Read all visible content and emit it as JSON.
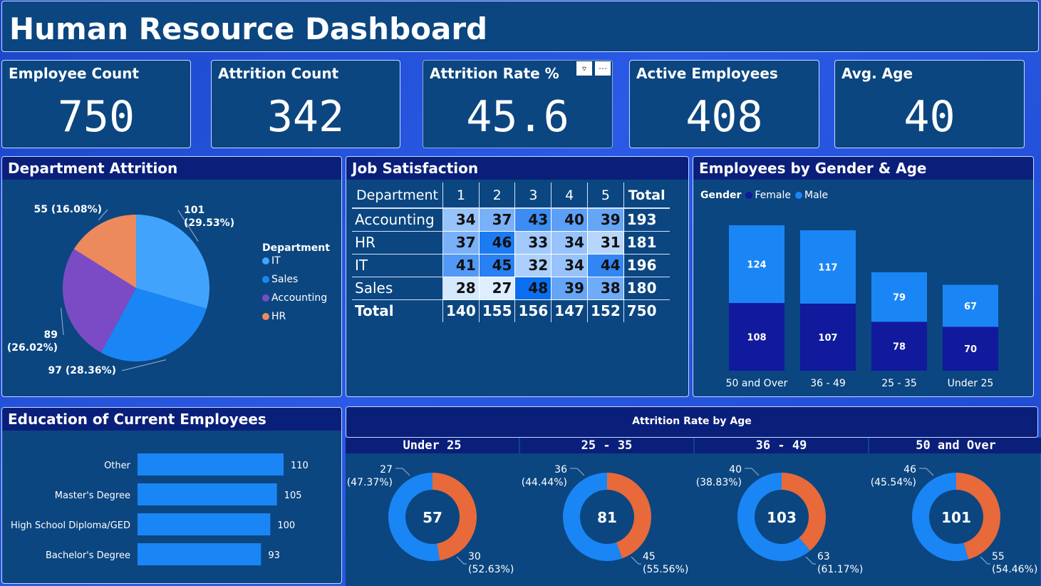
{
  "header": {
    "title": "Human Resource Dashboard"
  },
  "kpis": [
    {
      "label": "Employee Count",
      "value": "750"
    },
    {
      "label": "Attrition Count",
      "value": "342"
    },
    {
      "label": "Attrition Rate %",
      "value": "45.6"
    },
    {
      "label": "Active Employees",
      "value": "408"
    },
    {
      "label": "Avg. Age",
      "value": "40"
    }
  ],
  "dept_attrition": {
    "title": "Department Attrition",
    "legend_title": "Department",
    "chart_data": {
      "type": "pie",
      "categories": [
        "IT",
        "Sales",
        "Accounting",
        "HR"
      ],
      "values": [
        101,
        97,
        89,
        55
      ],
      "labels": [
        "101\n(29.53%)",
        "97 (28.36%)",
        "89\n(26.02%)",
        "55 (16.08%)"
      ],
      "colors": [
        "#41a3fc",
        "#1a86f5",
        "#7b4bc5",
        "#ec8a5e"
      ]
    }
  },
  "job_satisfaction": {
    "title": "Job Satisfaction",
    "chart_data": {
      "type": "table",
      "columns": [
        "Department",
        "1",
        "2",
        "3",
        "4",
        "5",
        "Total"
      ],
      "rows": [
        {
          "dept": "Accounting",
          "values": [
            34,
            37,
            43,
            40,
            39
          ],
          "total": 193
        },
        {
          "dept": "HR",
          "values": [
            37,
            46,
            33,
            34,
            31
          ],
          "total": 181
        },
        {
          "dept": "IT",
          "values": [
            41,
            45,
            32,
            34,
            44
          ],
          "total": 196
        },
        {
          "dept": "Sales",
          "values": [
            28,
            27,
            48,
            39,
            38
          ],
          "total": 180
        }
      ],
      "totals_label": "Total",
      "totals": [
        140,
        155,
        156,
        147,
        152
      ],
      "grand_total": 750
    }
  },
  "gender_age": {
    "title": "Employees by Gender & Age",
    "legend_title": "Gender",
    "chart_data": {
      "type": "bar",
      "stacked": true,
      "categories": [
        "50 and Over",
        "36 - 49",
        "25 - 35",
        "Under 25"
      ],
      "series": [
        {
          "name": "Female",
          "values": [
            108,
            107,
            78,
            70
          ],
          "color": "#11199c"
        },
        {
          "name": "Male",
          "values": [
            124,
            117,
            79,
            67
          ],
          "color": "#1a86f5"
        }
      ]
    }
  },
  "education": {
    "title": "Education of Current Employees",
    "chart_data": {
      "type": "bar",
      "orientation": "horizontal",
      "categories": [
        "Other",
        "Master's Degree",
        "High School Diploma/GED",
        "Bachelor's Degree"
      ],
      "values": [
        110,
        105,
        100,
        93
      ],
      "color": "#1a86f5"
    }
  },
  "attrition_age": {
    "title": "Attrition Rate by Age",
    "chart_data": [
      {
        "type": "pie",
        "donut": true,
        "title": "Under 25",
        "center": "57",
        "values": [
          27,
          30
        ],
        "labels": [
          "27\n(47.37%)",
          "30\n(52.63%)"
        ],
        "colors": [
          "#e8693a",
          "#1a86f5"
        ]
      },
      {
        "type": "pie",
        "donut": true,
        "title": "25 - 35",
        "center": "81",
        "values": [
          36,
          45
        ],
        "labels": [
          "36\n(44.44%)",
          "45\n(55.56%)"
        ],
        "colors": [
          "#e8693a",
          "#1a86f5"
        ]
      },
      {
        "type": "pie",
        "donut": true,
        "title": "36 - 49",
        "center": "103",
        "values": [
          40,
          63
        ],
        "labels": [
          "40\n(38.83%)",
          "63\n(61.17%)"
        ],
        "colors": [
          "#e8693a",
          "#1a86f5"
        ]
      },
      {
        "type": "pie",
        "donut": true,
        "title": "50 and Over",
        "center": "101",
        "values": [
          46,
          55
        ],
        "labels": [
          "46\n(45.54%)",
          "55\n(54.46%)"
        ],
        "colors": [
          "#e8693a",
          "#1a86f5"
        ]
      }
    ]
  }
}
